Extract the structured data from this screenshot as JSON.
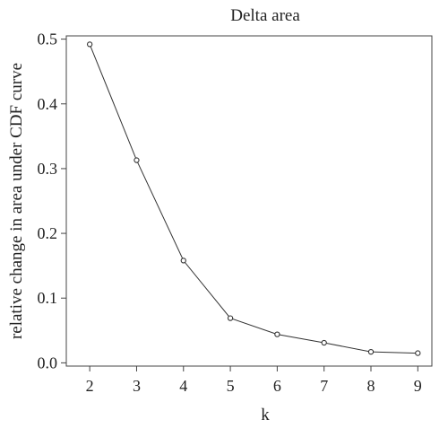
{
  "chart_data": {
    "type": "line",
    "title": "Delta area",
    "xlabel": "k",
    "ylabel": "relative change in area under CDF curve",
    "x": [
      2,
      3,
      4,
      5,
      6,
      7,
      8,
      9
    ],
    "xticks": [
      "2",
      "3",
      "4",
      "5",
      "6",
      "7",
      "8",
      "9"
    ],
    "xlim": [
      1.5,
      9.3
    ],
    "yticks": [
      "0.0",
      "0.1",
      "0.2",
      "0.3",
      "0.4",
      "0.5"
    ],
    "ytick_values": [
      0,
      0.1,
      0.2,
      0.3,
      0.4,
      0.5
    ],
    "ylim": [
      -0.005,
      0.505
    ],
    "series": [
      {
        "values": [
          0.492,
          0.313,
          0.158,
          0.069,
          0.044,
          0.031,
          0.017,
          0.015
        ]
      }
    ],
    "markers": "open-circle",
    "grid": false,
    "colors": {
      "line": "#333333",
      "frame": "#444444",
      "text": "#222222"
    }
  }
}
